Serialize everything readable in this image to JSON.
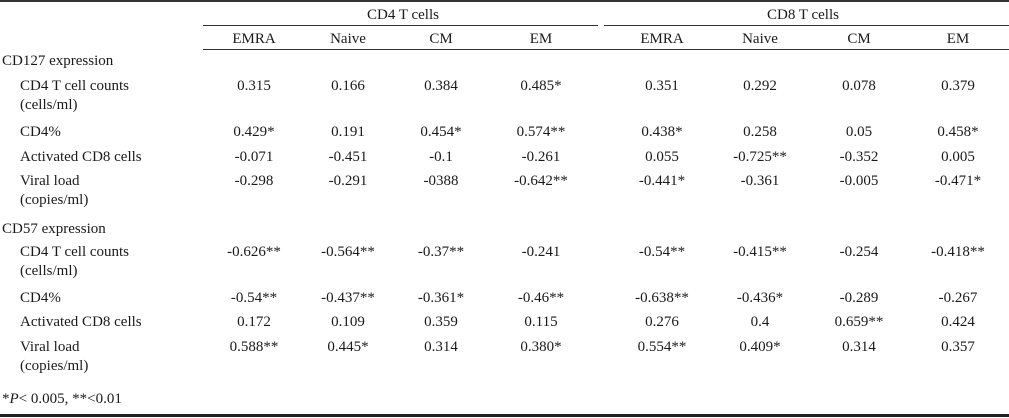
{
  "groups": [
    "CD4 T cells",
    "CD8 T cells"
  ],
  "columns": [
    "EMRA",
    "Naive",
    "CM",
    "EM",
    "EMRA",
    "Naive",
    "CM",
    "EM"
  ],
  "sections": [
    {
      "title": "CD127 expression",
      "rows": [
        {
          "label": [
            "CD4 T cell counts",
            "(cells/ml)"
          ],
          "values": [
            "0.315",
            "0.166",
            "0.384",
            "0.485*",
            "0.351",
            "0.292",
            "0.078",
            "0.379"
          ]
        },
        {
          "label": [
            "CD4%"
          ],
          "values": [
            "0.429*",
            "0.191",
            "0.454*",
            "0.574**",
            "0.438*",
            "0.258",
            "0.05",
            "0.458*"
          ]
        },
        {
          "label": [
            "Activated CD8 cells"
          ],
          "values": [
            "-0.071",
            "-0.451",
            "-0.1",
            "-0.261",
            "0.055",
            "-0.725**",
            "-0.352",
            "0.005"
          ]
        },
        {
          "label": [
            "Viral load",
            "(copies/ml)"
          ],
          "values": [
            "-0.298",
            "-0.291",
            "-0388",
            "-0.642**",
            "-0.441*",
            "-0.361",
            "-0.005",
            "-0.471*"
          ]
        }
      ]
    },
    {
      "title": "CD57 expression",
      "rows": [
        {
          "label": [
            "CD4 T cell counts",
            "(cells/ml)"
          ],
          "values": [
            "-0.626**",
            "-0.564**",
            "-0.37**",
            "-0.241",
            "-0.54**",
            "-0.415**",
            "-0.254",
            "-0.418**"
          ]
        },
        {
          "label": [
            "CD4%"
          ],
          "values": [
            "-0.54**",
            "-0.437**",
            "-0.361*",
            "-0.46**",
            "-0.638**",
            "-0.436*",
            "-0.289",
            "-0.267"
          ]
        },
        {
          "label": [
            "Activated CD8 cells"
          ],
          "values": [
            "0.172",
            "0.109",
            "0.359",
            "0.115",
            "0.276",
            "0.4",
            "0.659**",
            "0.424"
          ]
        },
        {
          "label": [
            "Viral load",
            "(copies/ml)"
          ],
          "values": [
            "0.588**",
            "0.445*",
            "0.314",
            "0.380*",
            "0.554**",
            "0.409*",
            "0.314",
            "0.357"
          ]
        }
      ]
    }
  ],
  "footnote": {
    "star": "*",
    "p_symbol": "P",
    "rest": "< 0.005, **<0.01"
  }
}
